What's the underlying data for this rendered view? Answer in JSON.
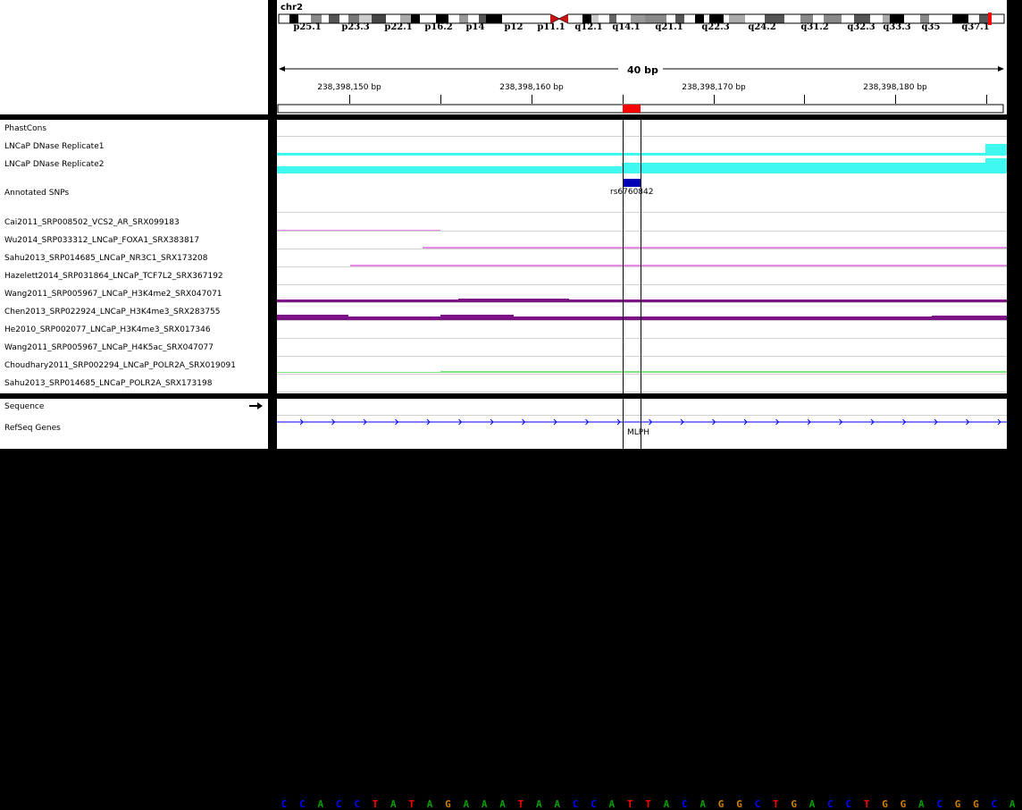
{
  "header": {
    "chromosome": "chr2",
    "bands": [
      "p25.1",
      "p23.3",
      "p22.1",
      "p16.2",
      "p14",
      "p12",
      "p11.1",
      "q12.1",
      "q14.1",
      "q21.1",
      "q22.3",
      "q24.2",
      "q31.2",
      "q32.3",
      "q33.3",
      "q35",
      "q37.1"
    ],
    "span_label": "40 bp",
    "ruler_ticks": [
      "238,398,150 bp",
      "238,398,160 bp",
      "238,398,170 bp",
      "238,398,180 bp"
    ]
  },
  "tracks": {
    "data": [
      "PhastCons",
      "LNCaP DNase Replicate1",
      "LNCaP DNase Replicate2",
      "Annotated SNPs",
      "Cai2011_SRP008502_VCS2_AR_SRX099183",
      "Wu2014_SRP033312_LNCaP_FOXA1_SRX383817",
      "Sahu2013_SRP014685_LNCaP_NR3C1_SRX173208",
      "Hazelett2014_SRP031864_LNCaP_TCF7L2_SRX367192",
      "Wang2011_SRP005967_LNCaP_H3K4me2_SRX047071",
      "Chen2013_SRP022924_LNCaP_H3K4me3_SRX283755",
      "He2010_SRP002077_LNCaP_H3K4me3_SRX017346",
      "Wang2011_SRP005967_LNCaP_H4K5ac_SRX047077",
      "Choudhary2011_SRP002294_LNCaP_POLR2A_SRX019091",
      "Sahu2013_SRP014685_LNCaP_POLR2A_SRX173198"
    ],
    "feature": [
      "Sequence",
      "RefSeq Genes"
    ]
  },
  "snp_label": "rs6760842",
  "gene_label": "MLPH",
  "sequence": "CCACCTATAGAAATAACCATTACAGGCTGACCTGGACGGCA",
  "colors": {
    "dnase": "#3ff8f0",
    "snp": "#0000b4",
    "pink": "#e68ce6",
    "purple": "#7c1286",
    "green": "#7ee07e",
    "gene": "#0000ff",
    "A": "#00a000",
    "C": "#0000ff",
    "G": "#d08000",
    "T": "#ff0000"
  },
  "sequence_strand_icon": "right-arrow-icon"
}
